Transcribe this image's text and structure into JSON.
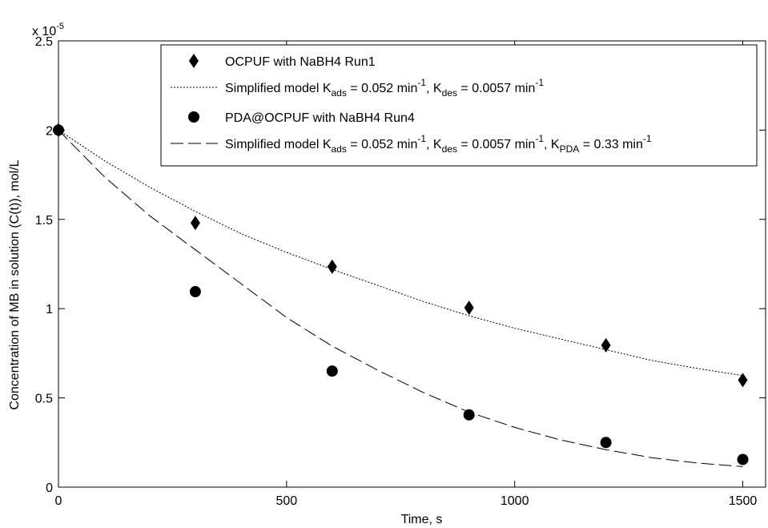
{
  "chart_data": {
    "type": "scatter",
    "title": "",
    "xlabel": "Time, s",
    "ylabel": "Concentration of MB in solution (C(t)), mol/L",
    "xlim": [
      0,
      1550
    ],
    "ylim": [
      0,
      2.5e-05
    ],
    "x_ticks": [
      0,
      500,
      1000,
      1500
    ],
    "x_tick_labels": [
      "0",
      "500",
      "1000",
      "1500"
    ],
    "y_ticks": [
      0,
      5e-06,
      1e-05,
      1.5e-05,
      2e-05,
      2.5e-05
    ],
    "y_tick_labels": [
      "0",
      "0.5",
      "1",
      "1.5",
      "2",
      "2.5"
    ],
    "y_exponent": {
      "base": "x 10",
      "power": "-5"
    },
    "grid": false,
    "legend_position": "top-right",
    "series": [
      {
        "kind": "scatter",
        "marker": "diamond",
        "name": "OCPUF with NaBH4 Run1",
        "x": [
          0,
          300,
          600,
          900,
          1200,
          1500
        ],
        "y": [
          2e-05,
          1.48e-05,
          1.235e-05,
          1.005e-05,
          7.95e-06,
          6e-06
        ]
      },
      {
        "kind": "line",
        "dash": "dotted",
        "name": "Simplified model K_ads = 0.052 min^-1, K_des = 0.0057 min^-1",
        "x": [
          0,
          100,
          200,
          300,
          400,
          500,
          600,
          700,
          800,
          900,
          1000,
          1100,
          1200,
          1300,
          1400,
          1500
        ],
        "y": [
          2e-05,
          1.83e-05,
          1.68e-05,
          1.545e-05,
          1.42e-05,
          1.315e-05,
          1.22e-05,
          1.13e-05,
          1.04e-05,
          9.6e-06,
          8.9e-06,
          8.3e-06,
          7.7e-06,
          7.1e-06,
          6.65e-06,
          6.25e-06
        ]
      },
      {
        "kind": "scatter",
        "marker": "circle",
        "name": "PDA@OCPUF with NaBH4 Run4",
        "x": [
          0,
          300,
          600,
          900,
          1200,
          1500
        ],
        "y": [
          2e-05,
          1.095e-05,
          6.5e-06,
          4.05e-06,
          2.5e-06,
          1.55e-06
        ]
      },
      {
        "kind": "line",
        "dash": "dashed",
        "name": "Simplified model K_ads = 0.052 min^-1, K_des = 0.0057 min^-1, K_PDA = 0.33 min^-1",
        "x": [
          0,
          100,
          200,
          300,
          400,
          500,
          600,
          700,
          800,
          900,
          1000,
          1100,
          1200,
          1300,
          1400,
          1500
        ],
        "y": [
          2e-05,
          1.74e-05,
          1.52e-05,
          1.33e-05,
          1.14e-05,
          9.5e-06,
          7.9e-06,
          6.55e-06,
          5.3e-06,
          4.2e-06,
          3.35e-06,
          2.65e-06,
          2.1e-06,
          1.65e-06,
          1.35e-06,
          1.15e-06
        ]
      }
    ],
    "legend": [
      {
        "series_index": 0,
        "parts": [
          {
            "t": "OCPUF with NaBH4 Run1"
          }
        ]
      },
      {
        "series_index": 1,
        "parts": [
          {
            "t": "Simplified model K"
          },
          {
            "t": "ads",
            "sub": true
          },
          {
            "t": " = 0.052 min"
          },
          {
            "t": "-1",
            "sup": true
          },
          {
            "t": ", K"
          },
          {
            "t": "des",
            "sub": true
          },
          {
            "t": " = 0.0057 min"
          },
          {
            "t": "-1",
            "sup": true
          }
        ]
      },
      {
        "series_index": 2,
        "parts": [
          {
            "t": "PDA@OCPUF with NaBH4 Run4"
          }
        ]
      },
      {
        "series_index": 3,
        "parts": [
          {
            "t": "Simplified model K"
          },
          {
            "t": "ads",
            "sub": true
          },
          {
            "t": " = 0.052 min"
          },
          {
            "t": "-1",
            "sup": true
          },
          {
            "t": ", K"
          },
          {
            "t": "des",
            "sub": true
          },
          {
            "t": " = 0.0057 min"
          },
          {
            "t": "-1",
            "sup": true
          },
          {
            "t": ", K"
          },
          {
            "t": "PDA",
            "sub": true
          },
          {
            "t": " = 0.33 min"
          },
          {
            "t": "-1",
            "sup": true
          }
        ]
      }
    ]
  }
}
